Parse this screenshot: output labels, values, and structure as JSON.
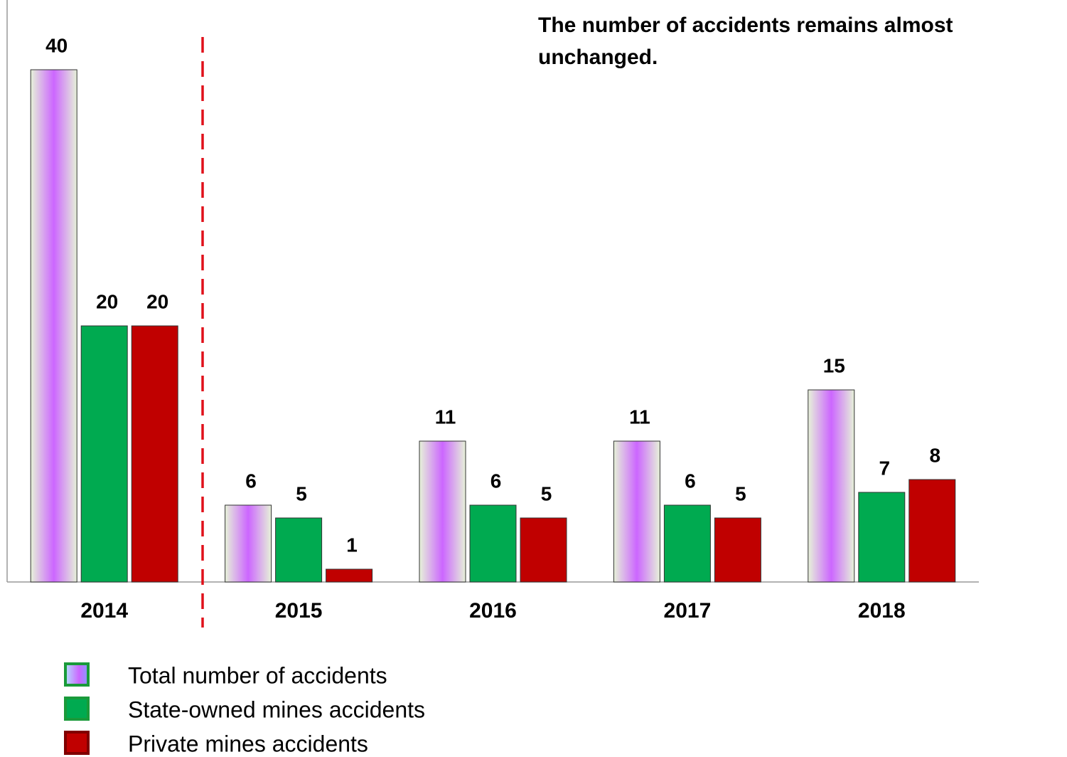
{
  "chart_data": {
    "type": "bar",
    "annotation": [
      "The number of accidents remains almost",
      "unchanged."
    ],
    "categories": [
      "2014",
      "2015",
      "2016",
      "2017",
      "2018"
    ],
    "series": [
      {
        "name": "Total number of accidents",
        "color": "#cc66ff",
        "values": [
          40,
          6,
          11,
          11,
          15
        ]
      },
      {
        "name": "State-owned mines accidents",
        "color": "#00aa50",
        "values": [
          20,
          5,
          6,
          6,
          7
        ]
      },
      {
        "name": "Private mines accidents",
        "color": "#c00000",
        "values": [
          20,
          1,
          5,
          5,
          8
        ]
      }
    ],
    "ylim": [
      0,
      45
    ],
    "grid": false,
    "legend": "bottom-left"
  }
}
